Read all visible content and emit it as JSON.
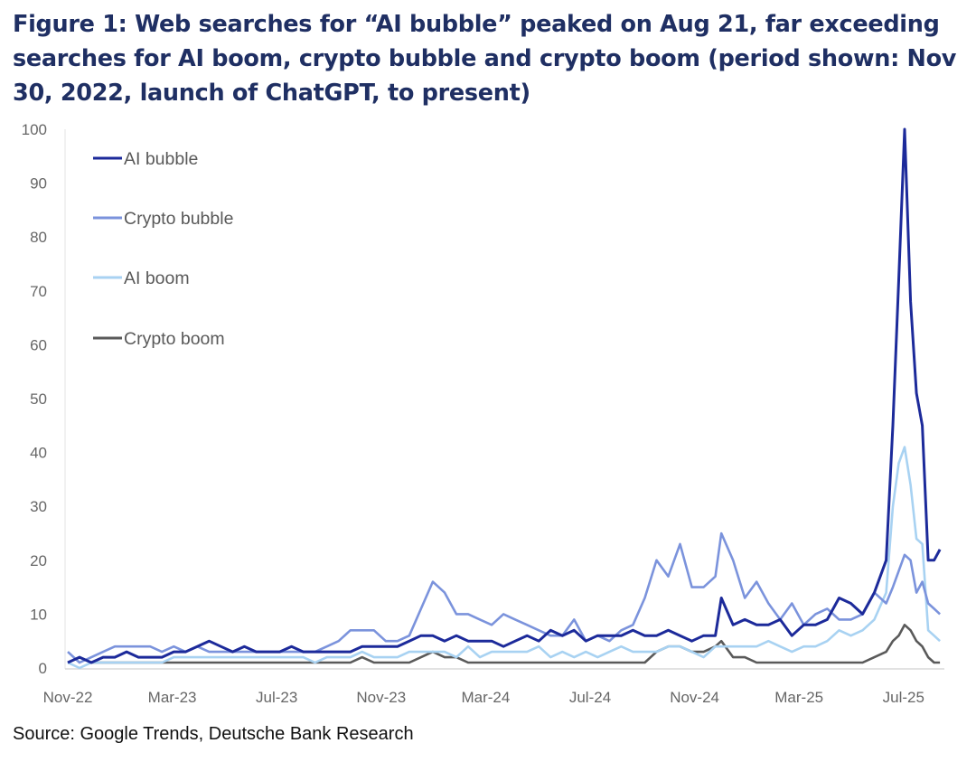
{
  "chart_data": {
    "type": "line",
    "title": "Figure 1: Web searches for “AI bubble” peaked on Aug 21, far exceeding searches for AI boom, crypto bubble and crypto boom (period shown: Nov 30, 2022, launch of ChatGPT, to present)",
    "source": "Source: Google Trends, Deutsche Bank Research",
    "xlabel": "",
    "ylabel": "",
    "ylim": [
      0,
      100
    ],
    "yticks": [
      0,
      10,
      20,
      30,
      40,
      50,
      60,
      70,
      80,
      90,
      100
    ],
    "xtick_labels": [
      "Nov-22",
      "Mar-23",
      "Jul-23",
      "Nov-23",
      "Mar-24",
      "Jul-24",
      "Nov-24",
      "Mar-25",
      "Jul-25"
    ],
    "grid": false,
    "legend_position": "top-left",
    "x": [
      "2022-11-30",
      "2022-12-14",
      "2022-12-28",
      "2023-01-11",
      "2023-01-25",
      "2023-02-08",
      "2023-02-22",
      "2023-03-08",
      "2023-03-22",
      "2023-04-05",
      "2023-04-19",
      "2023-05-03",
      "2023-05-17",
      "2023-05-31",
      "2023-06-14",
      "2023-06-28",
      "2023-07-12",
      "2023-07-26",
      "2023-08-09",
      "2023-08-23",
      "2023-09-06",
      "2023-09-20",
      "2023-10-04",
      "2023-10-18",
      "2023-11-01",
      "2023-11-15",
      "2023-11-29",
      "2023-12-13",
      "2023-12-27",
      "2024-01-10",
      "2024-01-24",
      "2024-02-07",
      "2024-02-21",
      "2024-03-06",
      "2024-03-20",
      "2024-04-03",
      "2024-04-17",
      "2024-05-01",
      "2024-05-15",
      "2024-05-29",
      "2024-06-12",
      "2024-06-26",
      "2024-07-10",
      "2024-07-24",
      "2024-08-07",
      "2024-08-21",
      "2024-09-04",
      "2024-09-18",
      "2024-10-02",
      "2024-10-16",
      "2024-10-30",
      "2024-11-13",
      "2024-11-27",
      "2024-12-11",
      "2024-12-25",
      "2025-01-08",
      "2025-01-15",
      "2025-01-29",
      "2025-02-12",
      "2025-02-26",
      "2025-03-12",
      "2025-03-26",
      "2025-04-09",
      "2025-04-23",
      "2025-05-07",
      "2025-05-21",
      "2025-06-04",
      "2025-06-18",
      "2025-07-02",
      "2025-07-16",
      "2025-07-30",
      "2025-08-07",
      "2025-08-14",
      "2025-08-21",
      "2025-08-28",
      "2025-09-04",
      "2025-09-11",
      "2025-09-18",
      "2025-09-25",
      "2025-10-02"
    ],
    "series": [
      {
        "name": "AI bubble",
        "color": "#1c2a9a",
        "values": [
          1,
          2,
          1,
          2,
          2,
          3,
          2,
          2,
          2,
          3,
          3,
          4,
          5,
          4,
          3,
          4,
          3,
          3,
          3,
          4,
          3,
          3,
          3,
          3,
          3,
          4,
          4,
          4,
          4,
          5,
          6,
          6,
          5,
          6,
          5,
          5,
          5,
          4,
          5,
          6,
          5,
          7,
          6,
          7,
          5,
          6,
          6,
          6,
          7,
          6,
          6,
          7,
          6,
          5,
          6,
          6,
          13,
          8,
          9,
          8,
          8,
          9,
          6,
          8,
          8,
          9,
          13,
          12,
          10,
          14,
          20,
          45,
          72,
          100,
          68,
          51,
          45,
          20,
          20,
          22
        ]
      },
      {
        "name": "Crypto bubble",
        "color": "#7b93dc",
        "values": [
          3,
          1,
          2,
          3,
          4,
          4,
          4,
          4,
          3,
          4,
          3,
          4,
          3,
          3,
          3,
          3,
          3,
          3,
          3,
          3,
          3,
          3,
          4,
          5,
          7,
          7,
          7,
          5,
          5,
          6,
          11,
          16,
          14,
          10,
          10,
          9,
          8,
          10,
          9,
          8,
          7,
          6,
          6,
          9,
          5,
          6,
          5,
          7,
          8,
          13,
          20,
          17,
          23,
          15,
          15,
          17,
          25,
          20,
          13,
          16,
          12,
          9,
          12,
          8,
          10,
          11,
          9,
          9,
          10,
          14,
          12,
          15,
          18,
          21,
          20,
          14,
          16,
          12,
          11,
          10
        ]
      },
      {
        "name": "AI boom",
        "color": "#a8d2f2",
        "values": [
          1,
          0,
          1,
          1,
          1,
          1,
          1,
          1,
          1,
          2,
          2,
          2,
          2,
          2,
          2,
          2,
          2,
          2,
          2,
          2,
          2,
          1,
          2,
          2,
          2,
          3,
          2,
          2,
          2,
          3,
          3,
          3,
          3,
          2,
          4,
          2,
          3,
          3,
          3,
          3,
          4,
          2,
          3,
          2,
          3,
          2,
          3,
          4,
          3,
          3,
          3,
          4,
          4,
          3,
          2,
          4,
          4,
          4,
          4,
          4,
          5,
          4,
          3,
          4,
          4,
          5,
          7,
          6,
          7,
          9,
          14,
          30,
          38,
          41,
          34,
          24,
          23,
          7,
          6,
          5
        ]
      },
      {
        "name": "Crypto boom",
        "color": "#5a5a5a",
        "values": [
          1,
          2,
          1,
          1,
          1,
          1,
          1,
          1,
          1,
          1,
          1,
          1,
          1,
          1,
          1,
          1,
          1,
          1,
          1,
          1,
          1,
          1,
          1,
          1,
          1,
          2,
          1,
          1,
          1,
          1,
          2,
          3,
          2,
          2,
          1,
          1,
          1,
          1,
          1,
          1,
          1,
          1,
          1,
          1,
          1,
          1,
          1,
          1,
          1,
          1,
          3,
          4,
          4,
          3,
          3,
          4,
          5,
          2,
          2,
          1,
          1,
          1,
          1,
          1,
          1,
          1,
          1,
          1,
          1,
          2,
          3,
          5,
          6,
          8,
          7,
          5,
          4,
          2,
          1,
          1
        ]
      }
    ]
  }
}
